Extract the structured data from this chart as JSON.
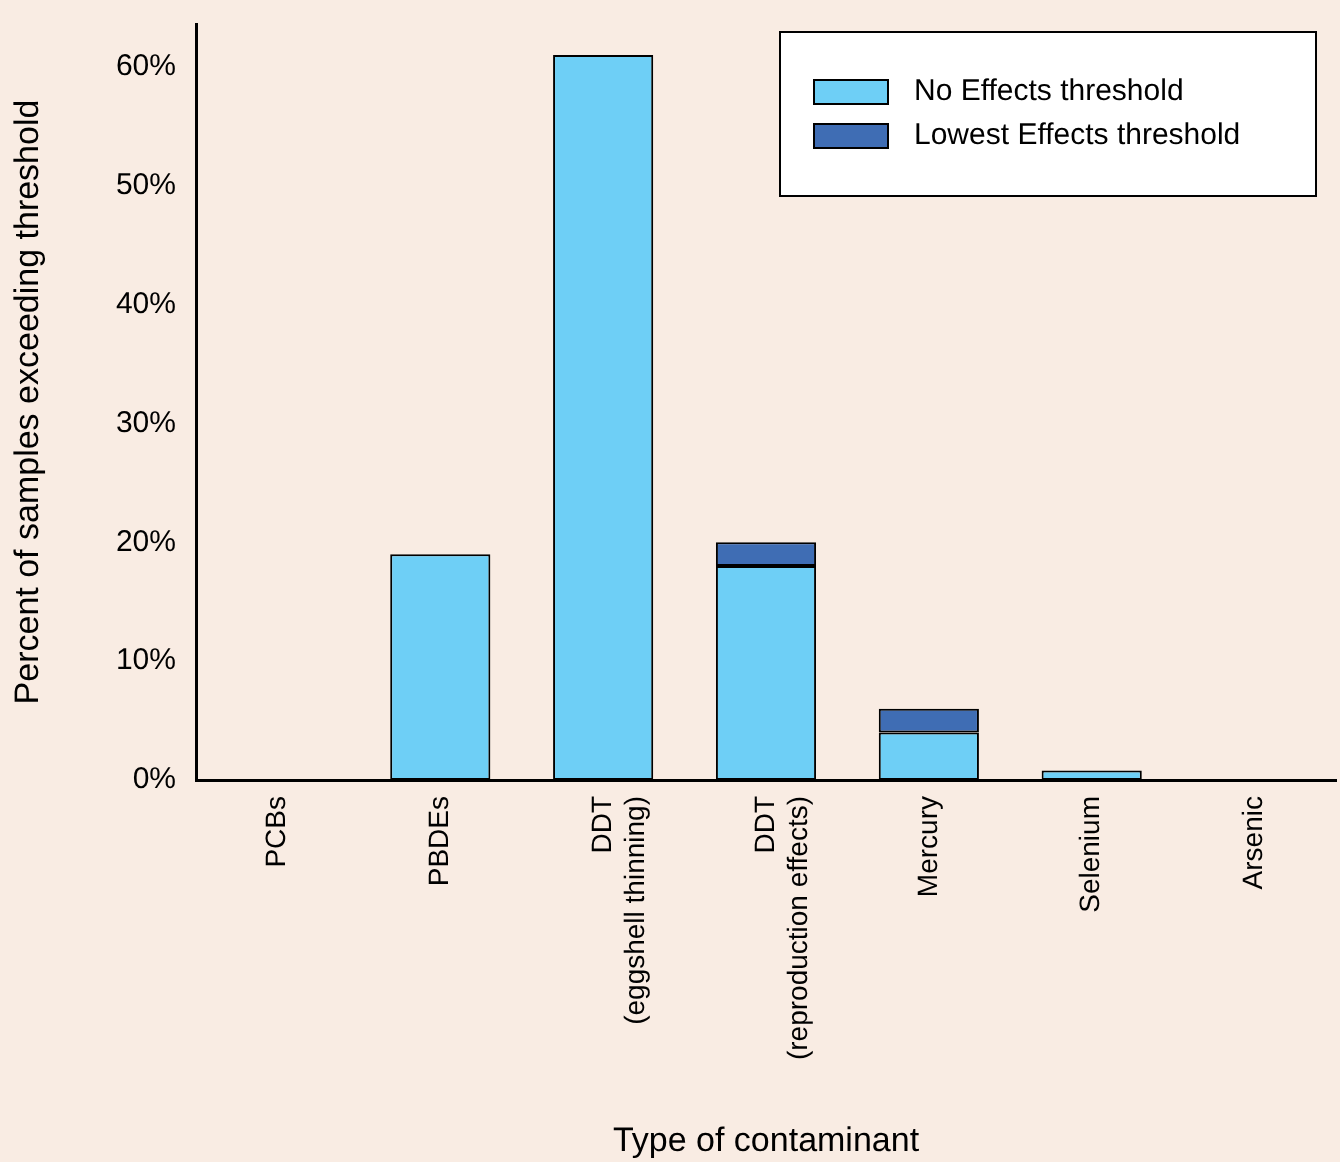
{
  "chart_data": {
    "type": "bar",
    "xlabel": "Type of contaminant",
    "ylabel": "Percent of samples exceeding threshold",
    "categories": [
      "PCBs",
      "PBDEs",
      "DDT\n(eggshell thinning)",
      "DDT\n(reproduction effects)",
      "Mercury",
      "Selenium",
      "Arsenic"
    ],
    "series": [
      {
        "name": "No Effects threshold",
        "color": "#6ecff6",
        "values": [
          0,
          19,
          61,
          18,
          4,
          0.8,
          0
        ]
      },
      {
        "name": "Lowest Effects threshold",
        "color": "#3f6db4",
        "values": [
          null,
          null,
          null,
          2,
          2,
          null,
          null
        ]
      }
    ],
    "stacked": true,
    "ylim": [
      0,
      63.6
    ],
    "yticks": [
      {
        "value": 0,
        "label": "0%"
      },
      {
        "value": 10,
        "label": "10%"
      },
      {
        "value": 20,
        "label": "20%"
      },
      {
        "value": 30,
        "label": "30%"
      },
      {
        "value": 40,
        "label": "40%"
      },
      {
        "value": 50,
        "label": "50%"
      },
      {
        "value": 60,
        "label": "60%"
      }
    ],
    "grid": false,
    "legend": "top right"
  }
}
